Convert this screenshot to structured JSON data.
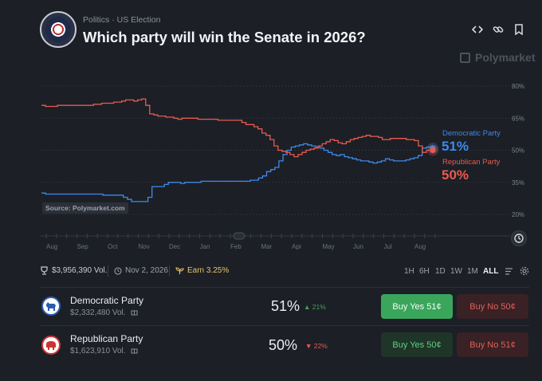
{
  "header": {
    "breadcrumb_category": "Politics",
    "breadcrumb_sep": "·",
    "breadcrumb_sub": "US Election",
    "title": "Which party will win the Senate in 2026?",
    "icons": [
      "code-icon",
      "link-icon",
      "bookmark-icon"
    ],
    "brand": "Polymarket"
  },
  "chart": {
    "source_label": "Source: Polymarket.com",
    "legend": [
      {
        "name": "Democratic Party",
        "value": "51%",
        "color": "#3b8beb"
      },
      {
        "name": "Republican Party",
        "value": "50%",
        "color": "#ea5a4f"
      }
    ]
  },
  "chart_data": {
    "type": "line",
    "y_ticks": [
      "80%",
      "65%",
      "50%",
      "35%",
      "20%"
    ],
    "ylim": [
      16,
      82
    ],
    "x_ticks": [
      "Aug",
      "Sep",
      "Oct",
      "Nov",
      "Dec",
      "Jan",
      "Feb",
      "Mar",
      "Apr",
      "May",
      "Jun",
      "Jul",
      "Aug"
    ],
    "series": [
      {
        "name": "Democratic Party",
        "color": "#3b8beb",
        "values": [
          30,
          29.5,
          29.5,
          29.5,
          29.5,
          29.5,
          29.5,
          29.5,
          29.5,
          29.5,
          29.5,
          29.5,
          29.5,
          29.5,
          29.5,
          29,
          29,
          29,
          29,
          29,
          28,
          27,
          26,
          26,
          26,
          26,
          28,
          33,
          33,
          33,
          34,
          35,
          35,
          35,
          34.5,
          35,
          35,
          35,
          35,
          35.5,
          35.5,
          35.5,
          35.5,
          35.5,
          35.5,
          35.5,
          35.5,
          35.5,
          35.5,
          35.5,
          35.5,
          36,
          36,
          37,
          38,
          40,
          41,
          42,
          45,
          48,
          50,
          51.5,
          52,
          52.5,
          53,
          52.5,
          52,
          51.5,
          51,
          50,
          49,
          48,
          47.5,
          48,
          47,
          46.5,
          46,
          45.5,
          45,
          45,
          44.5,
          44,
          44.5,
          45,
          46,
          45.5,
          45,
          45,
          45,
          45.5,
          46,
          46.5,
          47.5,
          51,
          51.5,
          51
        ]
      },
      {
        "name": "Republican Party",
        "color": "#ea5a4f",
        "values": [
          71,
          70.5,
          70.5,
          70.5,
          71,
          71,
          71,
          71,
          71,
          71,
          71,
          71,
          71,
          71.5,
          71.5,
          72,
          72,
          72,
          72.5,
          72.5,
          73,
          73.5,
          73.5,
          73,
          73.5,
          74,
          71,
          67,
          66.5,
          66,
          66,
          65.5,
          65.5,
          65,
          64.5,
          65,
          65,
          65,
          65,
          64.5,
          64.5,
          64.5,
          64.5,
          64.5,
          64,
          64,
          64,
          64,
          64,
          64,
          63,
          62,
          62,
          61,
          60,
          58,
          57,
          55,
          52,
          50,
          49.5,
          49,
          48,
          47,
          48,
          49,
          50,
          50.5,
          51,
          52,
          53,
          54,
          55,
          54.5,
          53.5,
          53,
          54,
          55,
          55.5,
          56,
          56.5,
          57,
          56.5,
          56.5,
          56,
          55,
          55,
          55.5,
          55.5,
          55.5,
          55.5,
          55,
          55,
          54.5,
          52,
          49,
          50,
          50
        ]
      }
    ]
  },
  "stats": {
    "volume": "$3,956,390 Vol.",
    "date": "Nov 2, 2026",
    "earn": "Earn 3.25%",
    "time_ranges": [
      "1H",
      "6H",
      "1D",
      "1W",
      "1M",
      "ALL"
    ],
    "selected_range": "ALL"
  },
  "outcomes": [
    {
      "name": "Democratic Party",
      "volume": "$2,332,480 Vol.",
      "pct": "51%",
      "change": "21%",
      "change_dir": "up",
      "buy_yes_label": "Buy Yes",
      "buy_yes_price": "51¢",
      "buy_no_label": "Buy No",
      "buy_no_price": "50¢"
    },
    {
      "name": "Republican Party",
      "volume": "$1,623,910 Vol.",
      "pct": "50%",
      "change": "22%",
      "change_dir": "down",
      "buy_yes_label": "Buy Yes",
      "buy_yes_price": "50¢",
      "buy_no_label": "Buy No",
      "buy_no_price": "51¢"
    }
  ],
  "colors": {
    "green": "#3aa65c",
    "red": "#ea5a4f",
    "blue": "#3b8beb",
    "bg": "#1c1f26"
  }
}
